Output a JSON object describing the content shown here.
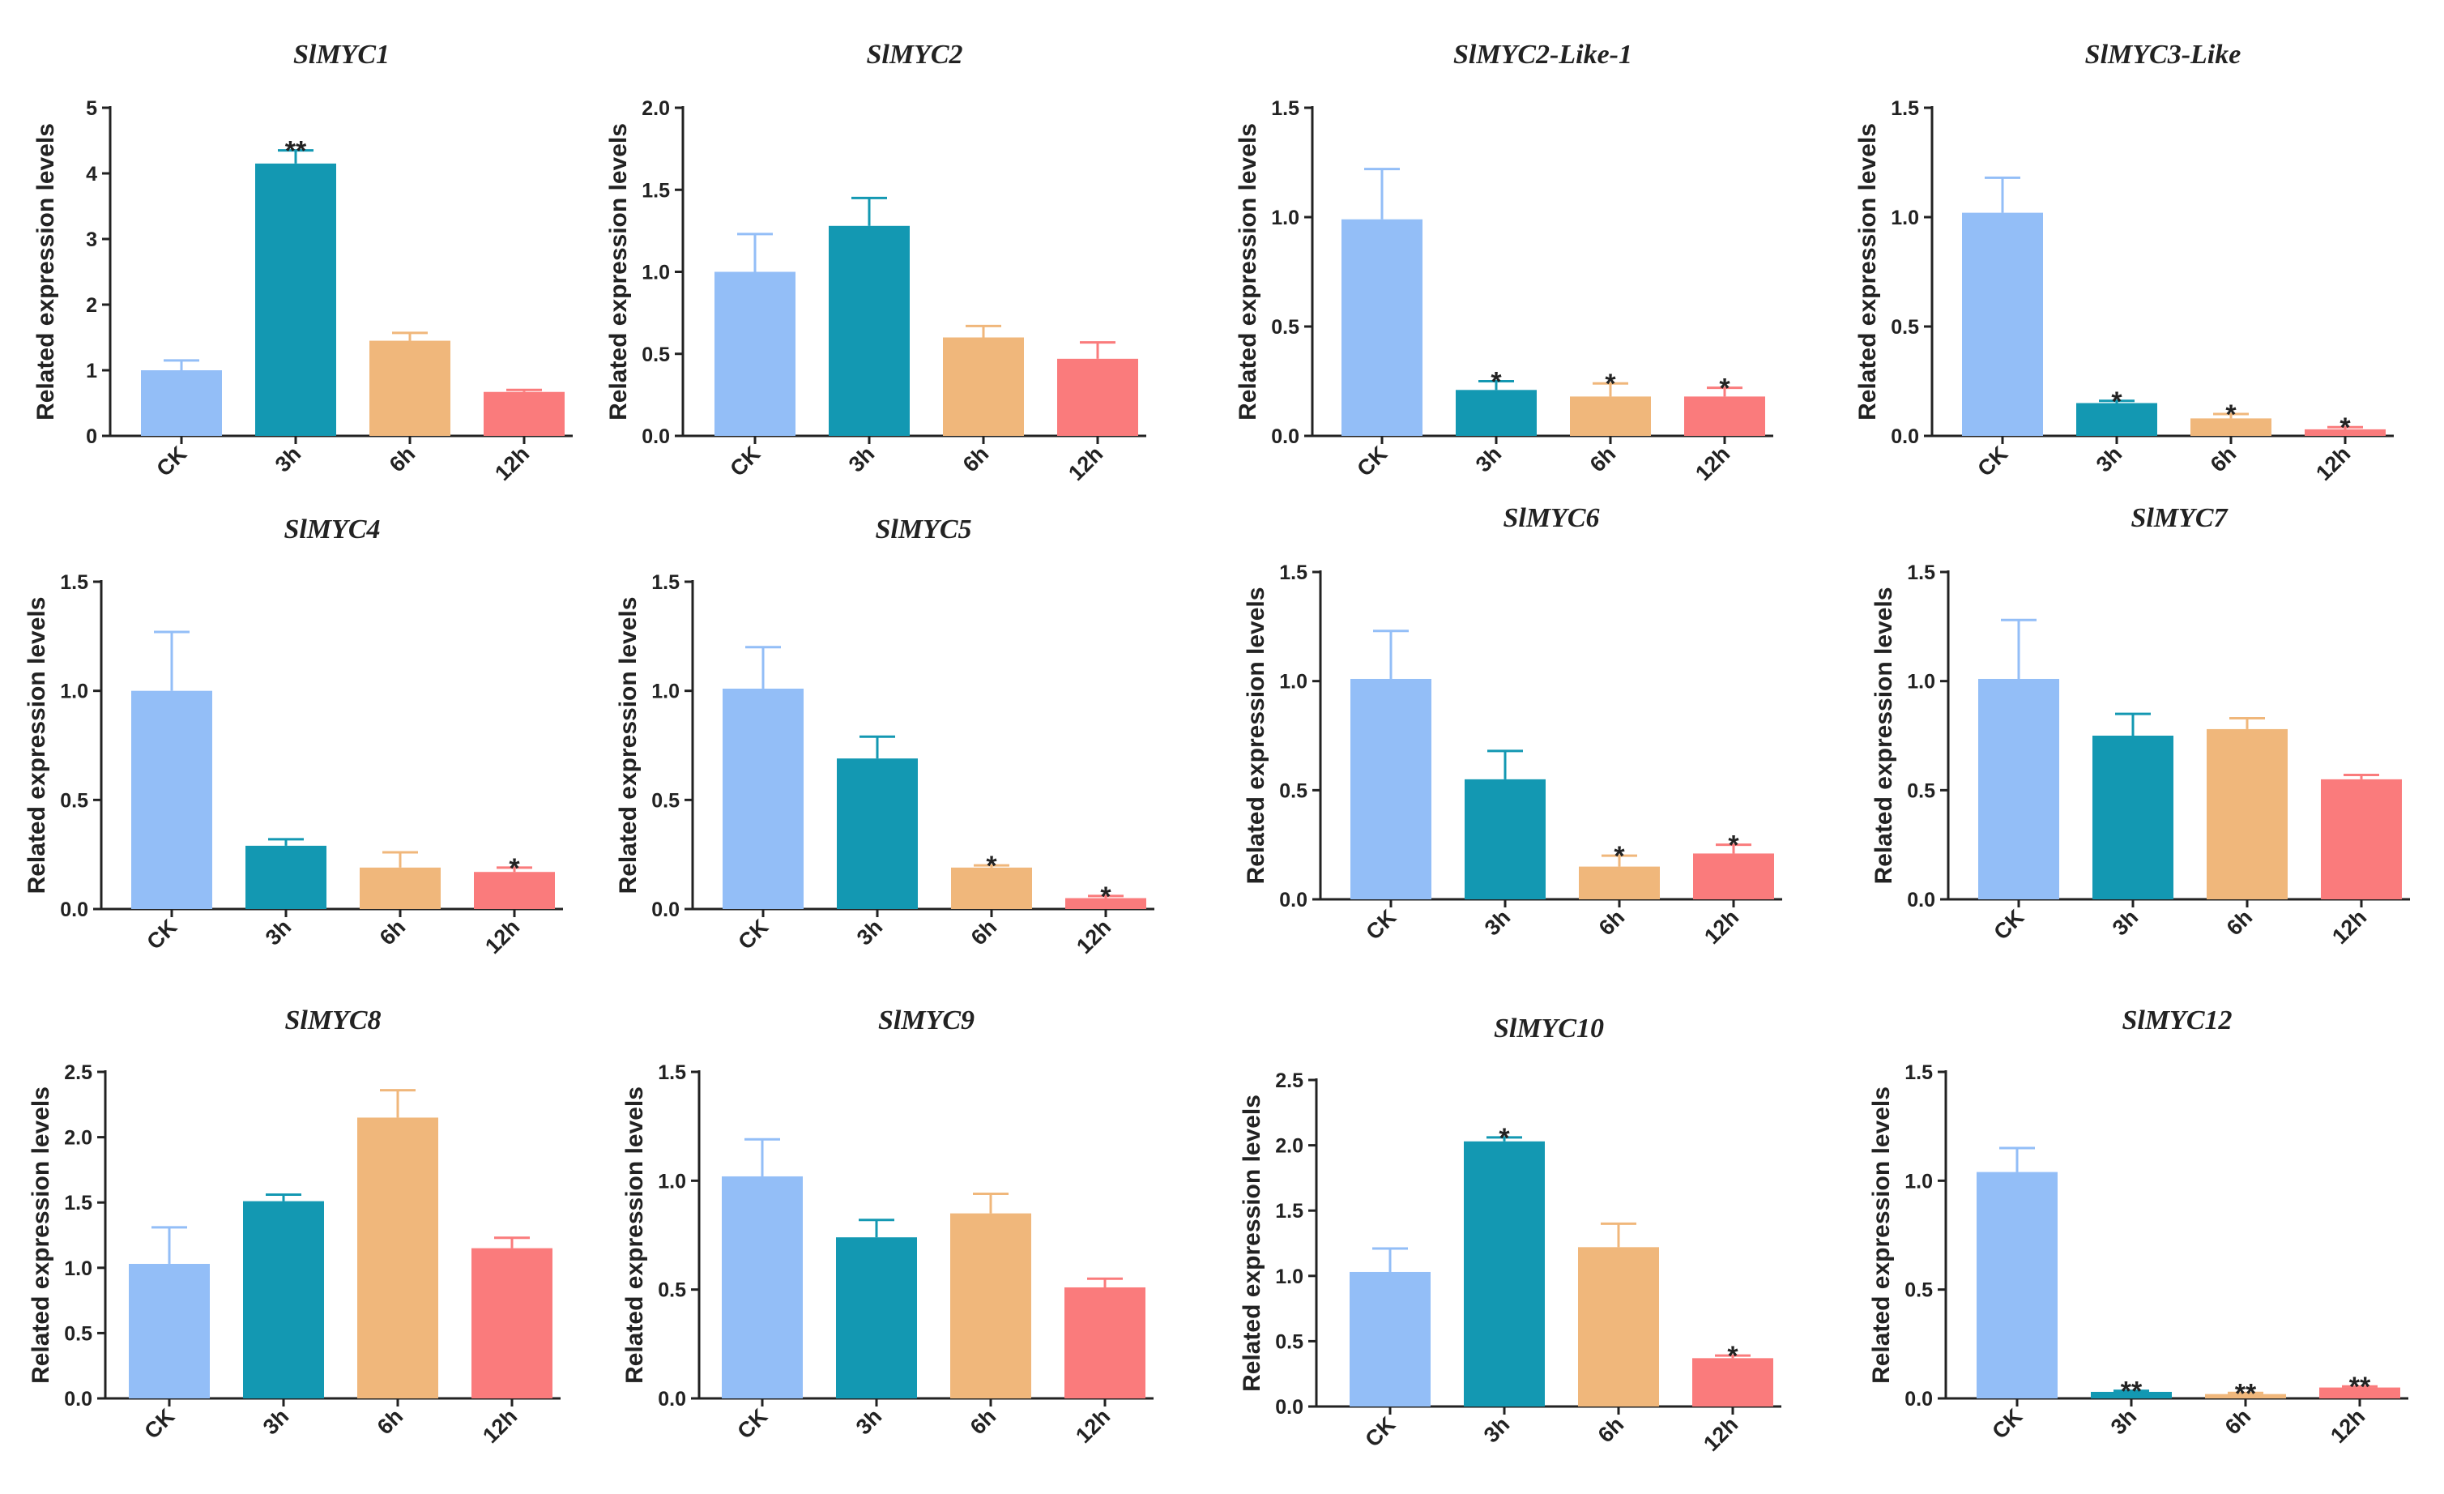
{
  "colors": {
    "CK": "#93bef7",
    "3h": "#1398b2",
    "6h": "#f0b77b",
    "12h": "#fa7b7c",
    "axis": "#222222"
  },
  "chart_data": [
    {
      "type": "bar",
      "title": "SlMYC1",
      "ylabel": "Related expression levels",
      "categories": [
        "CK",
        "3h",
        "6h",
        "12h"
      ],
      "values": [
        1.0,
        4.15,
        1.45,
        0.67
      ],
      "errors": [
        0.15,
        0.2,
        0.12,
        0.03
      ],
      "significance": [
        "",
        "**",
        "",
        ""
      ],
      "ylim": [
        0,
        5
      ],
      "yticks": [
        "0",
        "1",
        "2",
        "3",
        "4",
        "5"
      ]
    },
    {
      "type": "bar",
      "title": "SlMYC2",
      "ylabel": "Related expression levels",
      "categories": [
        "CK",
        "3h",
        "6h",
        "12h"
      ],
      "values": [
        1.0,
        1.28,
        0.6,
        0.47
      ],
      "errors": [
        0.23,
        0.17,
        0.07,
        0.1
      ],
      "significance": [
        "",
        "",
        "",
        ""
      ],
      "ylim": [
        0,
        2
      ],
      "yticks": [
        "0.0",
        "0.5",
        "1.0",
        "1.5",
        "2.0"
      ]
    },
    {
      "type": "bar",
      "title": "SlMYC2-Like-1",
      "ylabel": "Related expression levels",
      "categories": [
        "CK",
        "3h",
        "6h",
        "12h"
      ],
      "values": [
        0.99,
        0.21,
        0.18,
        0.18
      ],
      "errors": [
        0.23,
        0.04,
        0.06,
        0.04
      ],
      "significance": [
        "",
        "*",
        "*",
        "*"
      ],
      "ylim": [
        0,
        1.5
      ],
      "yticks": [
        "0.0",
        "0.5",
        "1.0",
        "1.5"
      ]
    },
    {
      "type": "bar",
      "title": "SlMYC3-Like",
      "ylabel": "Related expression levels",
      "categories": [
        "CK",
        "3h",
        "6h",
        "12h"
      ],
      "values": [
        1.02,
        0.15,
        0.08,
        0.03
      ],
      "errors": [
        0.16,
        0.01,
        0.02,
        0.01
      ],
      "significance": [
        "",
        "*",
        "*",
        "*"
      ],
      "ylim": [
        0,
        1.5
      ],
      "yticks": [
        "0.0",
        "0.5",
        "1.0",
        "1.5"
      ]
    },
    {
      "type": "bar",
      "title": "SlMYC4",
      "ylabel": "Related expression levels",
      "categories": [
        "CK",
        "3h",
        "6h",
        "12h"
      ],
      "values": [
        1.0,
        0.29,
        0.19,
        0.17
      ],
      "errors": [
        0.27,
        0.03,
        0.07,
        0.02
      ],
      "significance": [
        "",
        "",
        "",
        "*"
      ],
      "ylim": [
        0,
        1.5
      ],
      "yticks": [
        "0.0",
        "0.5",
        "1.0",
        "1.5"
      ]
    },
    {
      "type": "bar",
      "title": "SlMYC5",
      "ylabel": "Related expression levels",
      "categories": [
        "CK",
        "3h",
        "6h",
        "12h"
      ],
      "values": [
        1.01,
        0.69,
        0.19,
        0.05
      ],
      "errors": [
        0.19,
        0.1,
        0.01,
        0.01
      ],
      "significance": [
        "",
        "",
        "*",
        "*"
      ],
      "ylim": [
        0,
        1.5
      ],
      "yticks": [
        "0.0",
        "0.5",
        "1.0",
        "1.5"
      ]
    },
    {
      "type": "bar",
      "title": "SlMYC6",
      "ylabel": "Related expression levels",
      "categories": [
        "CK",
        "3h",
        "6h",
        "12h"
      ],
      "values": [
        1.01,
        0.55,
        0.15,
        0.21
      ],
      "errors": [
        0.22,
        0.13,
        0.05,
        0.04
      ],
      "significance": [
        "",
        "",
        "*",
        "*"
      ],
      "ylim": [
        0,
        1.5
      ],
      "yticks": [
        "0.0",
        "0.5",
        "1.0",
        "1.5"
      ]
    },
    {
      "type": "bar",
      "title": "SlMYC7",
      "ylabel": "Related expression levels",
      "categories": [
        "CK",
        "3h",
        "6h",
        "12h"
      ],
      "values": [
        1.01,
        0.75,
        0.78,
        0.55
      ],
      "errors": [
        0.27,
        0.1,
        0.05,
        0.02
      ],
      "significance": [
        "",
        "",
        "",
        ""
      ],
      "ylim": [
        0,
        1.5
      ],
      "yticks": [
        "0.0",
        "0.5",
        "1.0",
        "1.5"
      ]
    },
    {
      "type": "bar",
      "title": "SlMYC8",
      "ylabel": "Related expression levels",
      "categories": [
        "CK",
        "3h",
        "6h",
        "12h"
      ],
      "values": [
        1.03,
        1.51,
        2.15,
        1.15
      ],
      "errors": [
        0.28,
        0.05,
        0.21,
        0.08
      ],
      "significance": [
        "",
        "",
        "",
        ""
      ],
      "ylim": [
        0,
        2.5
      ],
      "yticks": [
        "0.0",
        "0.5",
        "1.0",
        "1.5",
        "2.0",
        "2.5"
      ]
    },
    {
      "type": "bar",
      "title": "SlMYC9",
      "ylabel": "Related expression levels",
      "categories": [
        "CK",
        "3h",
        "6h",
        "12h"
      ],
      "values": [
        1.02,
        0.74,
        0.85,
        0.51
      ],
      "errors": [
        0.17,
        0.08,
        0.09,
        0.04
      ],
      "significance": [
        "",
        "",
        "",
        ""
      ],
      "ylim": [
        0,
        1.5
      ],
      "yticks": [
        "0.0",
        "0.5",
        "1.0",
        "1.5"
      ]
    },
    {
      "type": "bar",
      "title": "SlMYC10",
      "ylabel": "Related expression levels",
      "categories": [
        "CK",
        "3h",
        "6h",
        "12h"
      ],
      "values": [
        1.03,
        2.03,
        1.22,
        0.37
      ],
      "errors": [
        0.18,
        0.03,
        0.18,
        0.02
      ],
      "significance": [
        "",
        "*",
        "",
        "*"
      ],
      "ylim": [
        0,
        2.5
      ],
      "yticks": [
        "0.0",
        "0.5",
        "1.0",
        "1.5",
        "2.0",
        "2.5"
      ]
    },
    {
      "type": "bar",
      "title": "SlMYC12",
      "ylabel": "Related expression levels",
      "categories": [
        "CK",
        "3h",
        "6h",
        "12h"
      ],
      "values": [
        1.04,
        0.03,
        0.02,
        0.05
      ],
      "errors": [
        0.11,
        0.005,
        0.005,
        0.005
      ],
      "significance": [
        "",
        "**",
        "**",
        "**"
      ],
      "ylim": [
        0,
        1.5
      ],
      "yticks": [
        "0.0",
        "0.5",
        "1.0",
        "1.5"
      ]
    }
  ]
}
